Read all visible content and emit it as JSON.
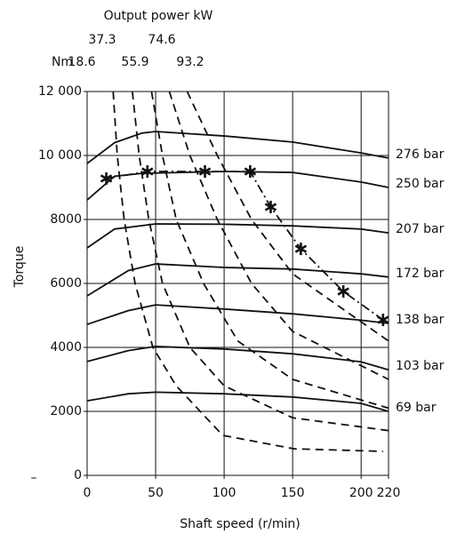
{
  "chart_data": {
    "type": "line",
    "x_label": "Shaft speed (r/min)",
    "y_label": "Torque",
    "power_title": "Output power kW",
    "power_unit": "Nm",
    "annotation": "–",
    "xlim": [
      0,
      220
    ],
    "xticks": [
      0,
      50,
      100,
      150,
      200,
      220
    ],
    "ylim": [
      0,
      12000
    ],
    "yticks": [
      0,
      2000,
      4000,
      6000,
      8000,
      {
        "value": 10000,
        "label": "10 000"
      },
      {
        "value": 12000,
        "label": "12 000"
      }
    ],
    "grid": true,
    "series": [
      {
        "name": "276 bar",
        "style": "solid",
        "color": "#111111",
        "x": [
          0,
          20,
          40,
          50,
          100,
          150,
          200,
          220
        ],
        "values": [
          9750,
          10400,
          10700,
          10750,
          10610,
          10420,
          10080,
          9920
        ]
      },
      {
        "name": "250 bar",
        "style": "solid",
        "color": "#111111",
        "x": [
          0,
          20,
          40,
          100,
          150,
          200,
          220
        ],
        "values": [
          8610,
          9350,
          9440,
          9500,
          9470,
          9170,
          9000
        ]
      },
      {
        "name": "207 bar",
        "style": "solid",
        "color": "#111111",
        "x": [
          0,
          20,
          50,
          100,
          150,
          200,
          220
        ],
        "values": [
          7110,
          7700,
          7860,
          7850,
          7800,
          7700,
          7580
        ]
      },
      {
        "name": "172 bar",
        "style": "solid",
        "color": "#111111",
        "x": [
          0,
          30,
          50,
          100,
          150,
          200,
          220
        ],
        "values": [
          5610,
          6400,
          6610,
          6500,
          6450,
          6300,
          6200
        ]
      },
      {
        "name": "138 bar",
        "style": "solid",
        "color": "#111111",
        "x": [
          0,
          30,
          50,
          100,
          150,
          200,
          220
        ],
        "values": [
          4720,
          5150,
          5330,
          5200,
          5050,
          4850,
          4750
        ]
      },
      {
        "name": "103 bar",
        "style": "solid",
        "color": "#111111",
        "x": [
          0,
          30,
          50,
          100,
          150,
          200,
          220
        ],
        "values": [
          3560,
          3900,
          4030,
          3950,
          3800,
          3550,
          3300
        ]
      },
      {
        "name": "69 bar",
        "style": "solid",
        "color": "#111111",
        "x": [
          0,
          30,
          50,
          100,
          150,
          200,
          220
        ],
        "values": [
          2330,
          2550,
          2600,
          2550,
          2450,
          2250,
          2000
        ]
      },
      {
        "name": "18.6",
        "style": "dashed",
        "color": "#111111",
        "x": [
          19,
          22,
          27,
          35,
          48,
          65,
          99,
          151,
          216
        ],
        "values": [
          12000,
          10000,
          8000,
          6000,
          4000,
          2800,
          1250,
          830,
          750
        ]
      },
      {
        "name": "37.3",
        "style": "dashed",
        "color": "#111111",
        "x": [
          33,
          38,
          45,
          55,
          75,
          100,
          150,
          220
        ],
        "values": [
          12000,
          10000,
          8000,
          6000,
          4000,
          2800,
          1800,
          1400
        ]
      },
      {
        "name": "55.9",
        "style": "dashed",
        "color": "#111111",
        "x": [
          47,
          55,
          65,
          85,
          110,
          150,
          220
        ],
        "values": [
          12000,
          10000,
          8000,
          6000,
          4200,
          3000,
          2100
        ]
      },
      {
        "name": "74.6",
        "style": "dashed",
        "color": "#111111",
        "x": [
          60,
          75,
          95,
          120,
          150,
          220
        ],
        "values": [
          12000,
          10000,
          8000,
          6000,
          4500,
          3000
        ]
      },
      {
        "name": "93.2",
        "style": "dashed",
        "color": "#111111",
        "x": [
          73,
          95,
          120,
          150,
          220
        ],
        "values": [
          12000,
          10000,
          8000,
          6300,
          4200
        ]
      },
      {
        "style": "dashdot",
        "marker": "star",
        "color": "#111111",
        "x": [
          14,
          44,
          86,
          119,
          134,
          156,
          187,
          216
        ],
        "values": [
          9280,
          9500,
          9500,
          9500,
          8390,
          7080,
          5750,
          4860
        ]
      }
    ]
  }
}
